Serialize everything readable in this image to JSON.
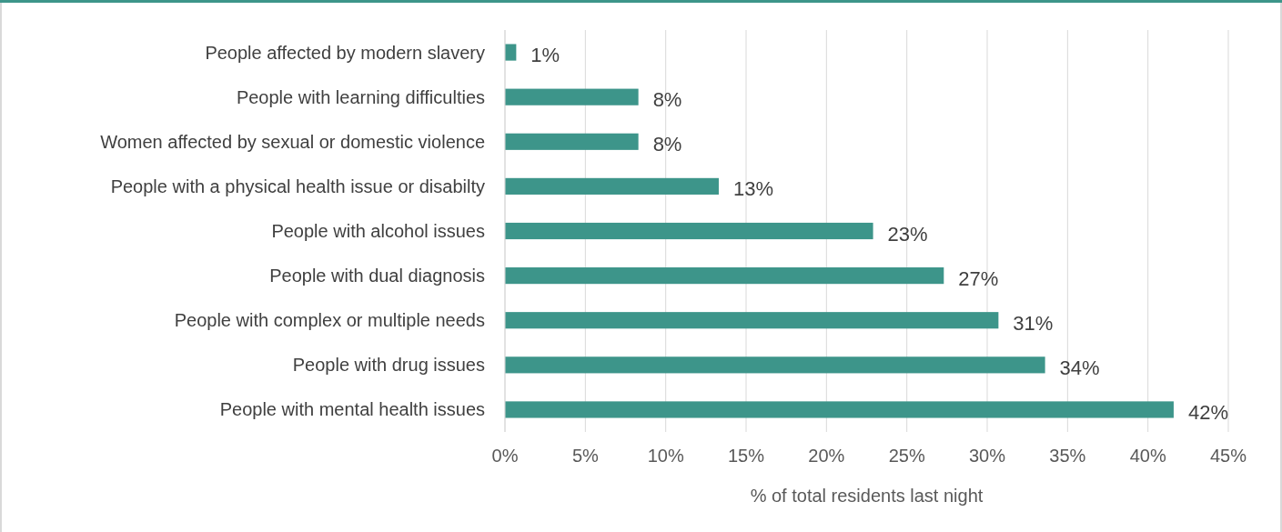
{
  "chart_data": {
    "type": "bar",
    "orientation": "horizontal",
    "xlabel": "% of total residents last night",
    "categories": [
      "People affected by modern slavery",
      "People with learning difficulties",
      "Women affected by sexual or domestic violence",
      "People with a physical health issue or disabilty",
      "People with alcohol issues",
      "People with dual diagnosis",
      "People with complex or multiple needs",
      "People with drug issues",
      "People with mental health issues"
    ],
    "values": [
      0.7,
      8.3,
      8.3,
      13.3,
      22.9,
      27.3,
      30.7,
      33.6,
      41.6
    ],
    "value_labels": [
      "1%",
      "8%",
      "8%",
      "13%",
      "23%",
      "27%",
      "31%",
      "34%",
      "42%"
    ],
    "color": "#3d958a",
    "xlim": [
      0,
      45
    ],
    "xticks": [
      {
        "value": 0,
        "label": "0%"
      },
      {
        "value": 5,
        "label": "5%"
      },
      {
        "value": 10,
        "label": "10%"
      },
      {
        "value": 15,
        "label": "15%"
      },
      {
        "value": 20,
        "label": "20%"
      },
      {
        "value": 25,
        "label": "25%"
      },
      {
        "value": 30,
        "label": "30%"
      },
      {
        "value": 35,
        "label": "35%"
      },
      {
        "value": 40,
        "label": "40%"
      },
      {
        "value": 45,
        "label": "45%"
      }
    ],
    "grid": "x"
  }
}
